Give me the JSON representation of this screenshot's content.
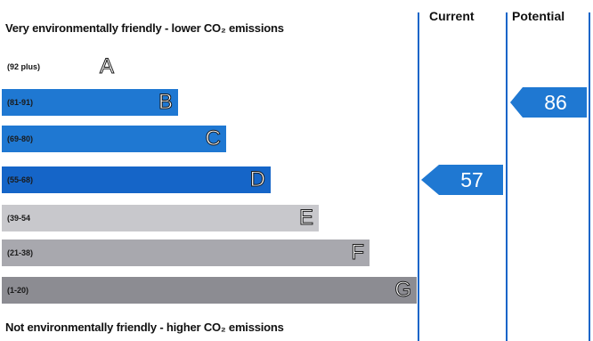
{
  "chart_data": {
    "type": "bar",
    "title_top": "Very environmentally friendly - lower CO₂ emissions",
    "title_bottom": "Not environmentally friendly - higher CO₂ emissions",
    "bands": [
      {
        "letter": "A",
        "range": "(92 plus)",
        "color": "#ffffff"
      },
      {
        "letter": "B",
        "range": "(81-91)",
        "color": "#1f78d2"
      },
      {
        "letter": "C",
        "range": "(69-80)",
        "color": "#1f78d2"
      },
      {
        "letter": "D",
        "range": "(55-68)",
        "color": "#1565c8"
      },
      {
        "letter": "E",
        "range": "(39-54",
        "color": "#c8c8cc"
      },
      {
        "letter": "F",
        "range": "(21-38)",
        "color": "#a8a8ae"
      },
      {
        "letter": "G",
        "range": "(1-20)",
        "color": "#8c8c92"
      }
    ],
    "columns": {
      "current": "Current",
      "potential": "Potential"
    },
    "current": {
      "value": 57,
      "color": "#1f78d2"
    },
    "potential": {
      "value": 86,
      "color": "#1f78d2"
    }
  }
}
